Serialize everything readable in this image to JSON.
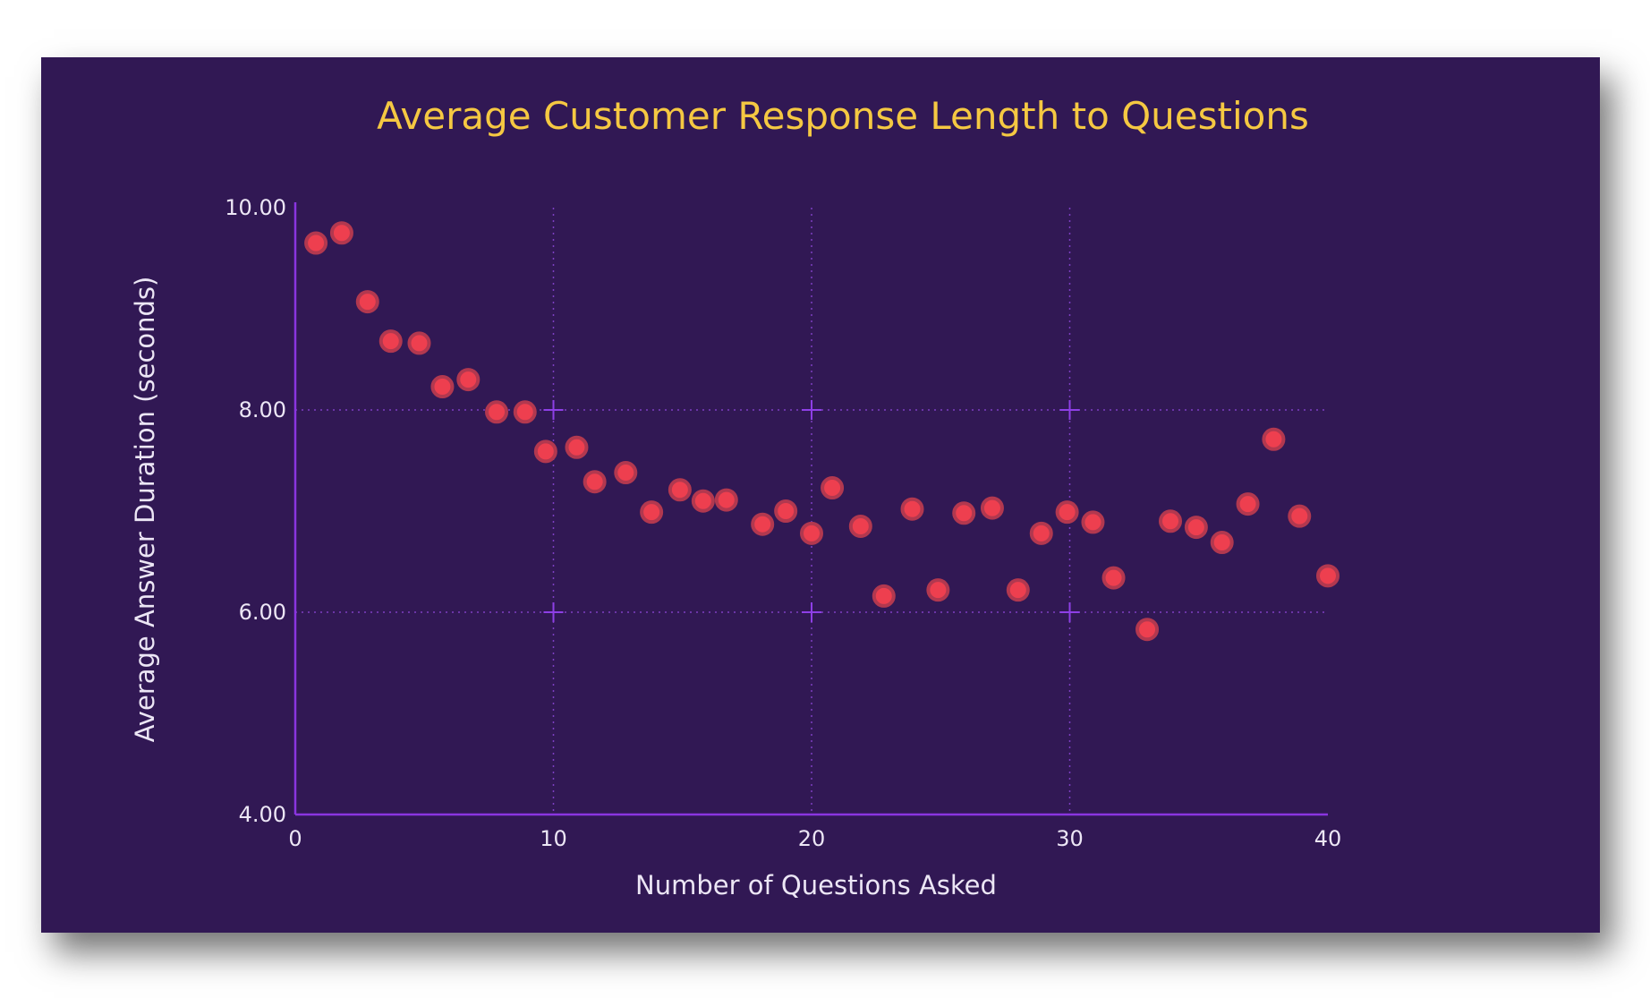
{
  "chart_data": {
    "type": "scatter",
    "title": "Average Customer Response Length to Questions",
    "xlabel": "Number of Questions Asked",
    "ylabel": "Average Answer Duration (seconds)",
    "xlim": [
      0,
      40
    ],
    "ylim": [
      4,
      10
    ],
    "xticks": [
      0,
      10,
      20,
      30,
      40
    ],
    "xtick_labels": [
      "0",
      "10",
      "20",
      "30",
      "40"
    ],
    "yticks": [
      4,
      6,
      8,
      10
    ],
    "ytick_labels": [
      "4.00",
      "6.00",
      "8.00",
      "10.00"
    ],
    "grid": true,
    "series": [
      {
        "name": "Average Answer Duration",
        "color": "#ee3f4f",
        "x": [
          0.8,
          1.8,
          2.8,
          3.7,
          4.8,
          5.7,
          6.7,
          7.8,
          8.9,
          9.7,
          10.9,
          11.6,
          12.8,
          13.8,
          14.9,
          15.8,
          16.7,
          18.1,
          19.0,
          20.0,
          20.8,
          21.9,
          22.8,
          23.9,
          24.9,
          25.9,
          27.0,
          28.0,
          28.9,
          29.9,
          30.9,
          31.7,
          33.0,
          33.9,
          34.9,
          35.9,
          36.9,
          37.9,
          38.9,
          40.0
        ],
        "y": [
          9.65,
          9.75,
          9.07,
          8.68,
          8.66,
          8.23,
          8.3,
          7.98,
          7.98,
          7.59,
          7.63,
          7.29,
          7.38,
          6.99,
          7.21,
          7.1,
          7.11,
          6.87,
          7.0,
          6.78,
          7.23,
          6.85,
          6.16,
          7.02,
          6.22,
          6.98,
          7.03,
          6.22,
          6.78,
          6.99,
          6.89,
          6.34,
          5.83,
          6.9,
          6.84,
          6.69,
          7.07,
          7.71,
          6.95,
          6.36
        ]
      }
    ]
  }
}
